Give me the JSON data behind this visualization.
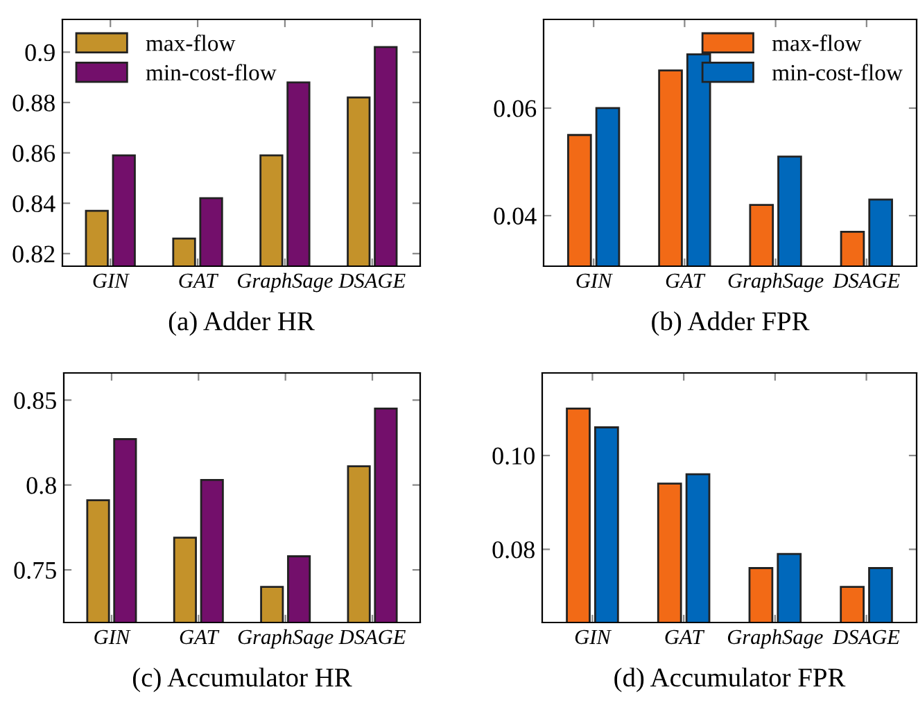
{
  "chart_data": [
    {
      "type": "bar",
      "xlabel": "(a) Adder HR",
      "categories": [
        "GIN",
        "GAT",
        "GraphSage",
        "DSAGE"
      ],
      "series": [
        {
          "name": "max-flow",
          "color": "#c4922a",
          "values": [
            0.837,
            0.826,
            0.859,
            0.882
          ]
        },
        {
          "name": "min-cost-flow",
          "color": "#730f6b",
          "values": [
            0.859,
            0.842,
            0.888,
            0.902
          ]
        }
      ],
      "ylim": [
        0.815,
        0.913
      ],
      "yticks": [
        0.82,
        0.84,
        0.86,
        0.88,
        0.9
      ],
      "legend": "top left",
      "grid": false
    },
    {
      "type": "bar",
      "xlabel": "(b) Adder FPR",
      "categories": [
        "GIN",
        "GAT",
        "GraphSage",
        "DSAGE"
      ],
      "series": [
        {
          "name": "max-flow",
          "color": "#f26a16",
          "values": [
            0.055,
            0.067,
            0.042,
            0.037
          ]
        },
        {
          "name": "min-cost-flow",
          "color": "#0068bb",
          "values": [
            0.06,
            0.07,
            0.051,
            0.043
          ]
        }
      ],
      "ylim": [
        0.0306,
        0.0765
      ],
      "yticks": [
        0.04,
        0.06
      ],
      "legend": "top right",
      "grid": false
    },
    {
      "type": "bar",
      "xlabel": "(c) Accumulator HR",
      "categories": [
        "GIN",
        "GAT",
        "GraphSage",
        "DSAGE"
      ],
      "series": [
        {
          "color": "#c4922a",
          "values": [
            0.791,
            0.769,
            0.74,
            0.811
          ]
        },
        {
          "color": "#730f6b",
          "values": [
            0.827,
            0.803,
            0.758,
            0.845
          ]
        }
      ],
      "ylim": [
        0.719,
        0.866
      ],
      "yticks": [
        0.75,
        0.8,
        0.85
      ],
      "legend": false,
      "grid": false
    },
    {
      "type": "bar",
      "xlabel": "(d) Accumulator FPR",
      "categories": [
        "GIN",
        "GAT",
        "GraphSage",
        "DSAGE"
      ],
      "series": [
        {
          "color": "#f26a16",
          "values": [
            0.11,
            0.094,
            0.076,
            0.072
          ]
        },
        {
          "color": "#0068bb",
          "values": [
            0.106,
            0.096,
            0.079,
            0.076
          ]
        }
      ],
      "ylim": [
        0.0644,
        0.1176
      ],
      "yticks": [
        {
          "value": 0.08,
          "label": "0.08"
        },
        {
          "value": 0.1,
          "label": "0.10"
        }
      ],
      "legend": false,
      "grid": false
    }
  ]
}
